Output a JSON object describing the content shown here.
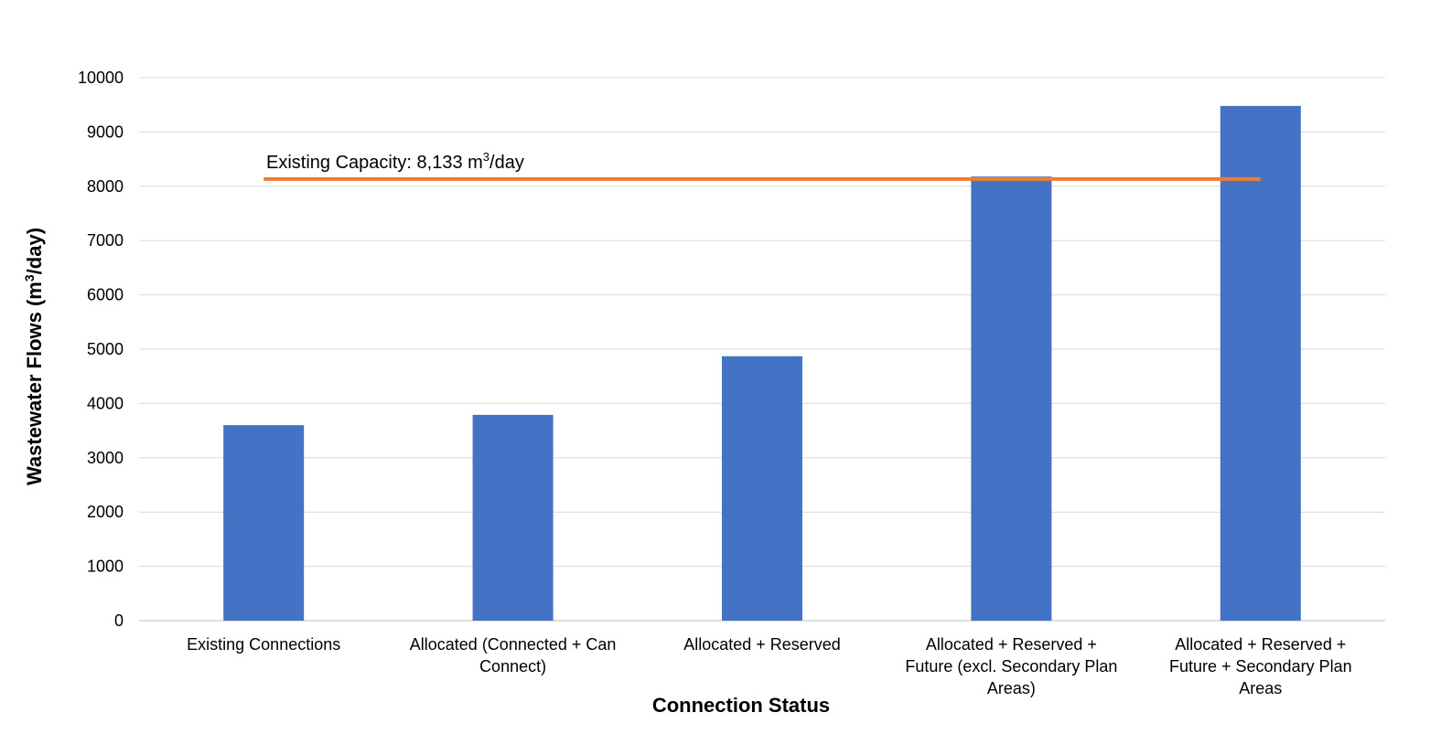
{
  "chart_data": {
    "type": "bar",
    "title": "",
    "xlabel": "Connection Status",
    "ylabel_main": "Wastewater Flows (m",
    "ylabel_sup": "3",
    "ylabel_tail": "/day)",
    "ylim": [
      0,
      10000
    ],
    "yticks": [
      0,
      1000,
      2000,
      3000,
      4000,
      5000,
      6000,
      7000,
      8000,
      9000,
      10000
    ],
    "grid": true,
    "categories": [
      [
        "Existing Connections"
      ],
      [
        "Allocated (Connected + Can",
        "Connect)"
      ],
      [
        "Allocated + Reserved"
      ],
      [
        "Allocated + Reserved +",
        "Future (excl. Secondary Plan",
        "Areas)"
      ],
      [
        "Allocated + Reserved +",
        "Future + Secondary Plan",
        "Areas"
      ]
    ],
    "values": [
      3600,
      3790,
      4870,
      8180,
      9480
    ],
    "bar_color": "#4472C4",
    "reference_line": {
      "value": 8133,
      "color": "#ED7D31",
      "label_main": "Existing  Capacity: 8,133 m",
      "label_sup": "3",
      "label_tail": "/day"
    }
  }
}
